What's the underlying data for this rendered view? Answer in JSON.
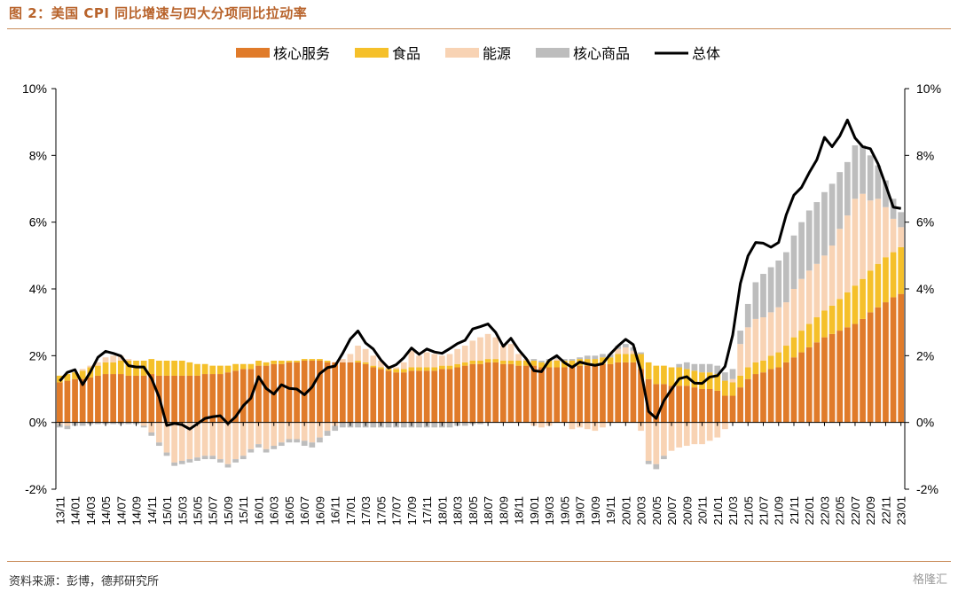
{
  "title": "图 2：美国 CPI 同比增速与四大分项同比拉动率",
  "source": "资料来源：彭博，德邦研究所",
  "watermark": "格隆汇",
  "chart_data": {
    "type": "bar",
    "stacked": true,
    "categories": [
      "13/11",
      "13/12",
      "14/01",
      "14/02",
      "14/03",
      "14/04",
      "14/05",
      "14/06",
      "14/07",
      "14/08",
      "14/09",
      "14/10",
      "14/11",
      "14/12",
      "15/01",
      "15/02",
      "15/03",
      "15/04",
      "15/05",
      "15/06",
      "15/07",
      "15/08",
      "15/09",
      "15/10",
      "15/11",
      "15/12",
      "16/01",
      "16/02",
      "16/03",
      "16/04",
      "16/05",
      "16/06",
      "16/07",
      "16/08",
      "16/09",
      "16/10",
      "16/11",
      "16/12",
      "17/01",
      "17/02",
      "17/03",
      "17/04",
      "17/05",
      "17/06",
      "17/07",
      "17/08",
      "17/09",
      "17/10",
      "17/11",
      "17/12",
      "18/01",
      "18/02",
      "18/03",
      "18/04",
      "18/05",
      "18/06",
      "18/07",
      "18/08",
      "18/09",
      "18/10",
      "18/11",
      "18/12",
      "19/01",
      "19/02",
      "19/03",
      "19/04",
      "19/05",
      "19/06",
      "19/07",
      "19/08",
      "19/09",
      "19/10",
      "19/11",
      "19/12",
      "20/01",
      "20/02",
      "20/03",
      "20/04",
      "20/05",
      "20/06",
      "20/07",
      "20/08",
      "20/09",
      "20/10",
      "20/11",
      "20/12",
      "21/01",
      "21/02",
      "21/03",
      "21/04",
      "21/05",
      "21/06",
      "21/07",
      "21/08",
      "21/09",
      "21/10",
      "21/11",
      "21/12",
      "22/01",
      "22/02",
      "22/03",
      "22/04",
      "22/05",
      "22/06",
      "22/07",
      "22/08",
      "22/09",
      "22/10",
      "22/11",
      "22/12",
      "23/01"
    ],
    "series": [
      {
        "name": "核心服务",
        "color": "#e07b2a",
        "values": [
          1.2,
          1.25,
          1.3,
          1.3,
          1.35,
          1.4,
          1.45,
          1.45,
          1.45,
          1.4,
          1.4,
          1.4,
          1.45,
          1.4,
          1.4,
          1.4,
          1.4,
          1.4,
          1.4,
          1.45,
          1.45,
          1.45,
          1.5,
          1.55,
          1.6,
          1.6,
          1.7,
          1.7,
          1.75,
          1.75,
          1.8,
          1.8,
          1.85,
          1.85,
          1.85,
          1.8,
          1.8,
          1.8,
          1.8,
          1.8,
          1.75,
          1.65,
          1.6,
          1.55,
          1.5,
          1.5,
          1.55,
          1.55,
          1.55,
          1.55,
          1.6,
          1.6,
          1.65,
          1.7,
          1.75,
          1.75,
          1.8,
          1.8,
          1.75,
          1.75,
          1.7,
          1.7,
          1.7,
          1.65,
          1.65,
          1.65,
          1.65,
          1.65,
          1.7,
          1.7,
          1.7,
          1.75,
          1.75,
          1.8,
          1.8,
          1.8,
          1.6,
          1.3,
          1.15,
          1.15,
          1.1,
          1.1,
          1.1,
          1.05,
          1.0,
          1.0,
          0.95,
          0.8,
          0.8,
          1.05,
          1.3,
          1.45,
          1.5,
          1.6,
          1.65,
          1.8,
          1.95,
          2.1,
          2.25,
          2.4,
          2.55,
          2.65,
          2.75,
          2.85,
          2.95,
          3.1,
          3.3,
          3.45,
          3.6,
          3.75,
          3.85
        ]
      },
      {
        "name": "食品",
        "color": "#f5c02a",
        "values": [
          0.2,
          0.2,
          0.2,
          0.25,
          0.3,
          0.3,
          0.35,
          0.35,
          0.4,
          0.45,
          0.45,
          0.45,
          0.45,
          0.45,
          0.45,
          0.45,
          0.45,
          0.4,
          0.35,
          0.3,
          0.25,
          0.25,
          0.2,
          0.2,
          0.15,
          0.15,
          0.15,
          0.1,
          0.1,
          0.1,
          0.05,
          0.05,
          0.05,
          0.05,
          0.05,
          0.05,
          0.0,
          0.0,
          0.0,
          0.05,
          0.05,
          0.05,
          0.05,
          0.05,
          0.1,
          0.1,
          0.1,
          0.1,
          0.1,
          0.1,
          0.1,
          0.1,
          0.1,
          0.1,
          0.1,
          0.1,
          0.1,
          0.1,
          0.1,
          0.1,
          0.15,
          0.15,
          0.15,
          0.15,
          0.2,
          0.2,
          0.2,
          0.2,
          0.2,
          0.2,
          0.2,
          0.2,
          0.2,
          0.25,
          0.25,
          0.25,
          0.45,
          0.5,
          0.55,
          0.55,
          0.55,
          0.55,
          0.5,
          0.5,
          0.5,
          0.5,
          0.5,
          0.45,
          0.4,
          0.35,
          0.35,
          0.35,
          0.35,
          0.4,
          0.45,
          0.5,
          0.6,
          0.65,
          0.7,
          0.75,
          0.8,
          0.85,
          0.95,
          1.05,
          1.15,
          1.2,
          1.25,
          1.3,
          1.35,
          1.35,
          1.4
        ]
      },
      {
        "name": "能源",
        "color": "#f8d3b4",
        "values": [
          -0.05,
          -0.1,
          0.0,
          0.05,
          0.05,
          0.1,
          0.15,
          0.2,
          0.15,
          0.05,
          0.0,
          -0.1,
          -0.3,
          -0.6,
          -0.9,
          -1.2,
          -1.15,
          -1.1,
          -1.05,
          -1.0,
          -1.0,
          -1.1,
          -1.25,
          -1.1,
          -1.0,
          -0.8,
          -0.65,
          -0.8,
          -0.7,
          -0.6,
          -0.5,
          -0.5,
          -0.55,
          -0.6,
          -0.45,
          -0.25,
          -0.1,
          0.1,
          0.25,
          0.45,
          0.4,
          0.3,
          0.2,
          0.1,
          0.05,
          0.2,
          0.5,
          0.35,
          0.45,
          0.4,
          0.3,
          0.35,
          0.45,
          0.5,
          0.6,
          0.7,
          0.75,
          0.65,
          0.45,
          0.5,
          0.2,
          0.05,
          -0.1,
          -0.15,
          -0.1,
          0.05,
          0.0,
          -0.2,
          -0.15,
          -0.2,
          -0.25,
          -0.15,
          0.0,
          0.15,
          0.2,
          0.1,
          -0.25,
          -1.15,
          -1.25,
          -1.0,
          -0.85,
          -0.75,
          -0.7,
          -0.65,
          -0.65,
          -0.55,
          -0.45,
          -0.2,
          0.1,
          0.95,
          1.2,
          1.3,
          1.3,
          1.3,
          1.35,
          1.3,
          1.45,
          1.55,
          1.6,
          1.6,
          1.65,
          1.8,
          2.1,
          2.3,
          2.6,
          2.55,
          2.1,
          1.95,
          1.5,
          1.0,
          0.6
        ]
      },
      {
        "name": "核心商品",
        "color": "#bdbdbd",
        "values": [
          -0.1,
          -0.1,
          -0.1,
          -0.1,
          -0.05,
          -0.05,
          -0.05,
          -0.05,
          -0.05,
          -0.05,
          -0.05,
          -0.05,
          -0.1,
          -0.1,
          -0.1,
          -0.1,
          -0.1,
          -0.1,
          -0.1,
          -0.1,
          -0.1,
          -0.1,
          -0.1,
          -0.1,
          -0.1,
          -0.1,
          -0.1,
          -0.1,
          -0.1,
          -0.1,
          -0.1,
          -0.1,
          -0.15,
          -0.15,
          -0.15,
          -0.15,
          -0.15,
          -0.15,
          -0.15,
          -0.15,
          -0.15,
          -0.15,
          -0.15,
          -0.15,
          -0.15,
          -0.15,
          -0.15,
          -0.15,
          -0.15,
          -0.15,
          -0.15,
          -0.15,
          -0.1,
          -0.1,
          -0.05,
          -0.05,
          0.0,
          0.0,
          0.0,
          0.0,
          0.0,
          0.0,
          0.05,
          0.05,
          0.05,
          0.05,
          0.05,
          0.05,
          0.05,
          0.1,
          0.1,
          0.1,
          0.1,
          0.1,
          0.1,
          0.1,
          0.05,
          -0.1,
          -0.15,
          -0.1,
          0.0,
          0.1,
          0.2,
          0.2,
          0.25,
          0.25,
          0.25,
          0.25,
          0.3,
          0.4,
          0.7,
          1.1,
          1.3,
          1.35,
          1.4,
          1.5,
          1.6,
          1.7,
          1.8,
          1.85,
          1.9,
          1.85,
          1.7,
          1.6,
          1.6,
          1.45,
          1.35,
          1.0,
          0.8,
          0.6,
          0.45
        ]
      }
    ],
    "total": {
      "name": "总体",
      "color": "#000000",
      "values": [
        1.24,
        1.5,
        1.58,
        1.13,
        1.51,
        1.95,
        2.13,
        2.07,
        1.99,
        1.7,
        1.66,
        1.66,
        1.32,
        0.76,
        -0.09,
        -0.03,
        -0.07,
        -0.2,
        -0.04,
        0.12,
        0.17,
        0.2,
        -0.04,
        0.17,
        0.5,
        0.73,
        1.37,
        1.02,
        0.85,
        1.13,
        1.02,
        1.0,
        0.83,
        1.06,
        1.46,
        1.64,
        1.69,
        2.07,
        2.5,
        2.74,
        2.38,
        2.2,
        1.87,
        1.63,
        1.73,
        1.94,
        2.23,
        2.04,
        2.2,
        2.11,
        2.07,
        2.21,
        2.36,
        2.46,
        2.8,
        2.87,
        2.95,
        2.7,
        2.28,
        2.52,
        2.18,
        1.91,
        1.55,
        1.52,
        1.86,
        2.0,
        1.79,
        1.65,
        1.81,
        1.75,
        1.71,
        1.76,
        2.05,
        2.29,
        2.49,
        2.33,
        1.54,
        0.33,
        0.12,
        0.65,
        0.99,
        1.31,
        1.37,
        1.18,
        1.17,
        1.36,
        1.4,
        1.68,
        2.62,
        4.16,
        4.99,
        5.39,
        5.37,
        5.25,
        5.39,
        6.22,
        6.81,
        7.04,
        7.48,
        7.87,
        8.54,
        8.26,
        8.58,
        9.06,
        8.52,
        8.26,
        8.2,
        7.75,
        7.11,
        6.45,
        6.41
      ]
    },
    "x_tick_labels": [
      "13/11",
      "14/01",
      "14/03",
      "14/05",
      "14/07",
      "14/09",
      "14/11",
      "15/01",
      "15/03",
      "15/05",
      "15/07",
      "15/09",
      "15/11",
      "16/01",
      "16/03",
      "16/05",
      "16/07",
      "16/09",
      "16/11",
      "17/01",
      "17/03",
      "17/05",
      "17/07",
      "17/09",
      "17/11",
      "18/01",
      "18/03",
      "18/05",
      "18/07",
      "18/09",
      "18/11",
      "19/01",
      "19/03",
      "19/05",
      "19/07",
      "19/09",
      "19/11",
      "20/01",
      "20/03",
      "20/05",
      "20/07",
      "20/09",
      "20/11",
      "21/01",
      "21/03",
      "21/05",
      "21/07",
      "21/09",
      "21/11",
      "22/01",
      "22/03",
      "22/05",
      "22/07",
      "22/09",
      "22/11",
      "23/01"
    ],
    "y_ticks": [
      "-2%",
      "0%",
      "2%",
      "4%",
      "6%",
      "8%",
      "10%"
    ],
    "ylim": [
      -2,
      10
    ],
    "legend_position": "top-center",
    "grid": false,
    "dual_axis_labels": true
  }
}
